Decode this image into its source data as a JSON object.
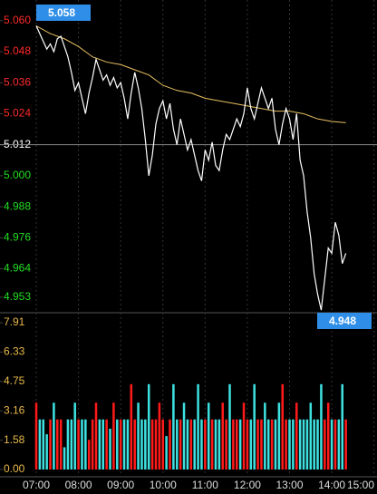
{
  "chart_data": {
    "type": "intraday",
    "xlim": [
      420,
      903
    ],
    "xticks": [
      {
        "value": 420,
        "label": "07:00"
      },
      {
        "value": 480,
        "label": "08:00"
      },
      {
        "value": 540,
        "label": "09:00"
      },
      {
        "value": 600,
        "label": "10:00"
      },
      {
        "value": 660,
        "label": "11:00"
      },
      {
        "value": 720,
        "label": "12:00"
      },
      {
        "value": 780,
        "label": "13:00"
      },
      {
        "value": 840,
        "label": "14:00"
      },
      {
        "value": 900,
        "label": "15:00"
      }
    ],
    "grid": true,
    "price": {
      "ylim": [
        4.947,
        5.068
      ],
      "yticks": [
        {
          "value": 5.06,
          "label": "5.060"
        },
        5.048,
        5.036,
        5.024,
        5.012,
        {
          "value": 5.0,
          "label": "5.000"
        },
        4.988,
        4.976,
        4.964,
        4.953
      ],
      "reference": 5.012,
      "up_color": "#ff2a2a",
      "down_color": "#22dd22",
      "reference_color": "#ffffff",
      "color": "#ffffff",
      "x": [
        420,
        425,
        430,
        435,
        440,
        445,
        450,
        455,
        460,
        465,
        470,
        475,
        480,
        485,
        490,
        495,
        500,
        505,
        510,
        515,
        520,
        525,
        530,
        535,
        540,
        545,
        550,
        555,
        560,
        565,
        570,
        575,
        580,
        585,
        590,
        595,
        600,
        605,
        610,
        615,
        620,
        625,
        630,
        635,
        640,
        645,
        650,
        655,
        660,
        665,
        670,
        675,
        680,
        685,
        690,
        695,
        700,
        705,
        710,
        715,
        720,
        725,
        730,
        735,
        740,
        745,
        750,
        755,
        760,
        765,
        770,
        775,
        780,
        785,
        790,
        795,
        800,
        805,
        810,
        815,
        820,
        825,
        830,
        835,
        840,
        845,
        850,
        855,
        860
      ],
      "values": [
        5.058,
        5.055,
        5.052,
        5.049,
        5.051,
        5.048,
        5.053,
        5.054,
        5.05,
        5.046,
        5.04,
        5.033,
        5.036,
        5.03,
        5.024,
        5.032,
        5.038,
        5.045,
        5.041,
        5.037,
        5.039,
        5.035,
        5.038,
        5.034,
        5.036,
        5.03,
        5.022,
        5.032,
        5.04,
        5.034,
        5.026,
        5.014,
        5.0,
        5.008,
        5.02,
        5.026,
        5.029,
        5.022,
        5.028,
        5.018,
        5.012,
        5.022,
        5.016,
        5.01,
        5.014,
        5.008,
        5.002,
        4.998,
        5.01,
        5.006,
        5.013,
        5.004,
        5.002,
        5.01,
        5.016,
        5.014,
        5.018,
        5.022,
        5.019,
        5.024,
        5.034,
        5.026,
        5.022,
        5.028,
        5.034,
        5.03,
        5.026,
        5.03,
        5.018,
        5.012,
        5.02,
        5.026,
        5.022,
        5.014,
        5.024,
        5.006,
        5.0,
        4.986,
        4.976,
        4.962,
        4.954,
        4.948,
        4.96,
        4.972,
        4.97,
        4.982,
        4.977,
        4.966,
        4.97
      ],
      "average": {
        "color": "#e8c060",
        "x": [
          420,
          440,
          460,
          480,
          500,
          520,
          540,
          560,
          580,
          600,
          620,
          640,
          660,
          680,
          700,
          720,
          740,
          760,
          780,
          800,
          820,
          840,
          860
        ],
        "values": [
          5.058,
          5.055,
          5.053,
          5.05,
          5.046,
          5.044,
          5.043,
          5.041,
          5.039,
          5.035,
          5.033,
          5.032,
          5.03,
          5.029,
          5.028,
          5.027,
          5.026,
          5.025,
          5.025,
          5.024,
          5.022,
          5.021,
          5.0205
        ]
      },
      "annotations": [
        {
          "text": "5.058"
        },
        {
          "text": "4.948"
        }
      ],
      "annotation_color": "#2f8fe8"
    },
    "volume": {
      "ylim": [
        0,
        8.45
      ],
      "yticks": [
        7.91,
        6.33,
        4.75,
        3.16,
        1.58,
        {
          "value": 0,
          "label": "0.00"
        }
      ],
      "tick_color": "#e8b84a",
      "up_color": "#ff1a1a",
      "down_color": "#3ee0e0",
      "values": [
        3.6,
        2.7,
        2.7,
        1.9,
        2.7,
        3.6,
        2.7,
        2.7,
        1.2,
        2.7,
        2.7,
        3.6,
        2.7,
        2.7,
        2.7,
        1.6,
        2.7,
        3.6,
        2.7,
        2.7,
        2.7,
        2.2,
        3.6,
        2.7,
        2.7,
        2.7,
        2.7,
        4.6,
        2.7,
        3.6,
        2.7,
        2.7,
        4.6,
        2.7,
        2.7,
        3.6,
        2.7,
        1.8,
        2.7,
        4.6,
        2.7,
        2.7,
        3.6,
        2.7,
        2.7,
        2.7,
        4.6,
        2.7,
        2.7,
        3.6,
        2.7,
        2.7,
        2.7,
        3.6,
        2.7,
        4.6,
        2.7,
        2.7,
        2.7,
        3.6,
        2.7,
        2.7,
        4.6,
        2.7,
        2.7,
        3.6,
        2.7,
        2.7,
        2.7,
        3.6,
        4.6,
        2.7,
        2.7,
        2.7,
        3.6,
        2.7,
        2.7,
        2.7,
        3.6,
        2.7,
        2.7,
        4.6,
        2.7,
        3.6,
        2.7,
        2.7,
        2.7,
        4.6,
        2.7
      ]
    }
  }
}
